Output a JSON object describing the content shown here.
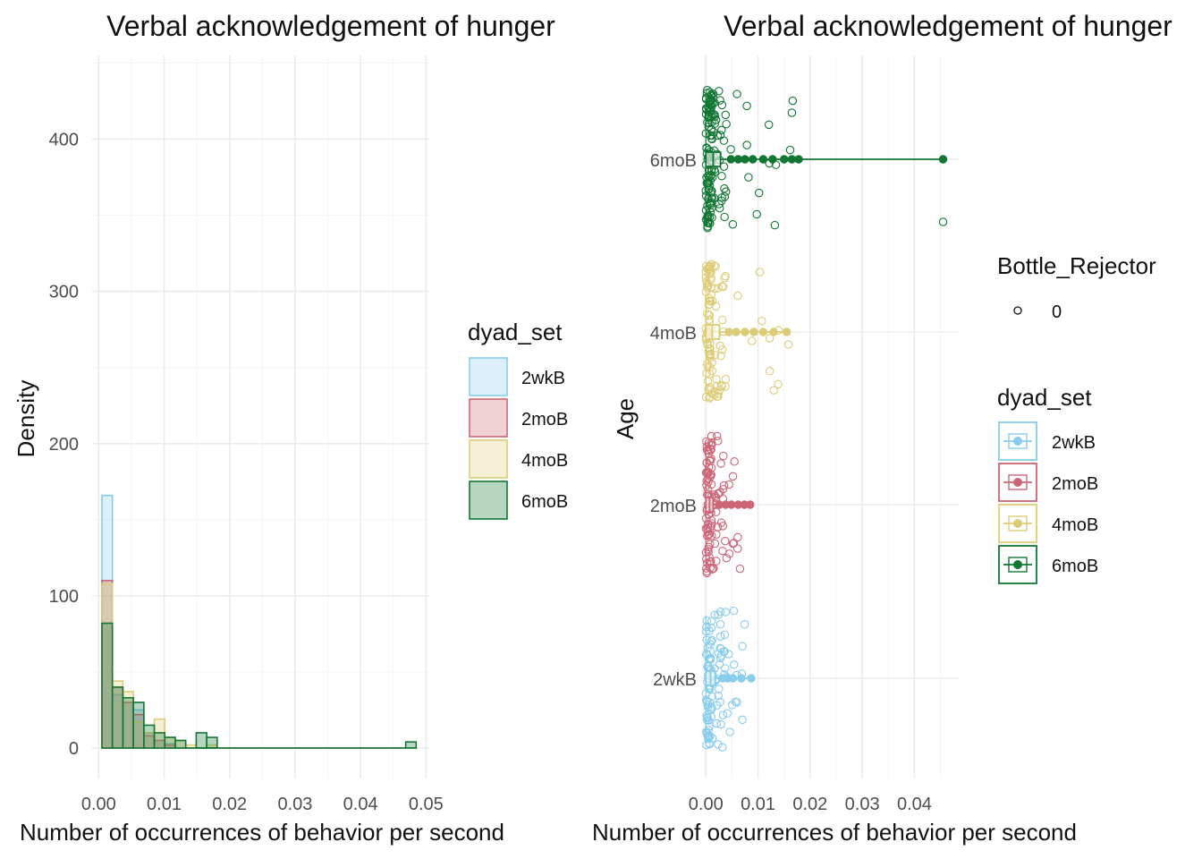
{
  "chart_data": [
    {
      "type": "histogram",
      "title": "Verbal acknowledgement of hunger",
      "xlabel": "Number of occurrences of behavior per second",
      "ylabel": "Density",
      "xlim": [
        -0.001,
        0.0505
      ],
      "ylim": [
        -20,
        455
      ],
      "x_ticks": [
        "0.00",
        "0.01",
        "0.02",
        "0.03",
        "0.04",
        "0.05"
      ],
      "x_tick_values": [
        0,
        0.01,
        0.02,
        0.03,
        0.04,
        0.05
      ],
      "y_ticks": [
        "0",
        "100",
        "200",
        "300",
        "400"
      ],
      "y_tick_values": [
        0,
        100,
        200,
        300,
        400
      ],
      "bin_width": 0.0016,
      "bin_starts": [
        0.0005,
        0.0021,
        0.0037,
        0.0053,
        0.0069,
        0.0085,
        0.0101,
        0.0117,
        0.0133,
        0.0149,
        0.0165,
        0.0181,
        0.0197,
        0.0213,
        0.0229,
        0.0245,
        0.0261,
        0.0277,
        0.0293,
        0.0309,
        0.0325,
        0.0341,
        0.0357,
        0.0373,
        0.0389,
        0.0405,
        0.0421,
        0.0437,
        0.0453,
        0.0469
      ],
      "legend_title": "dyad_set",
      "legend_position": "right",
      "grid": true,
      "series": [
        {
          "name": "2wkB",
          "color": "#88CCEE",
          "values": [
            166,
            35,
            30,
            25,
            10,
            5,
            3,
            0,
            0,
            0,
            0,
            0,
            0,
            0,
            0,
            0,
            0,
            0,
            0,
            0,
            0,
            0,
            0,
            0,
            0,
            0,
            0,
            0,
            0,
            0
          ]
        },
        {
          "name": "2moB",
          "color": "#CC6677",
          "values": [
            110,
            40,
            30,
            22,
            8,
            5,
            2,
            0,
            0,
            0,
            0,
            0,
            0,
            0,
            0,
            0,
            0,
            0,
            0,
            0,
            0,
            0,
            0,
            0,
            0,
            0,
            0,
            0,
            0,
            0
          ]
        },
        {
          "name": "4moB",
          "color": "#DDCC77",
          "values": [
            108,
            44,
            37,
            17,
            10,
            19,
            7,
            5,
            2,
            0,
            2,
            0,
            0,
            0,
            0,
            0,
            0,
            0,
            0,
            0,
            0,
            0,
            0,
            0,
            0,
            0,
            0,
            0,
            0,
            0
          ]
        },
        {
          "name": "6moB",
          "color": "#117733",
          "values": [
            82,
            40,
            33,
            30,
            15,
            10,
            7,
            5,
            0,
            10,
            7,
            0,
            0,
            0,
            0,
            0,
            0,
            0,
            0,
            0,
            0,
            0,
            0,
            0,
            0,
            0,
            0,
            0,
            0,
            4
          ]
        }
      ]
    },
    {
      "type": "boxplot",
      "title": "Verbal acknowledgement of hunger",
      "xlabel": "Number of occurrences of behavior per second",
      "ylabel": "Age",
      "xlim": [
        -0.0009,
        0.0485
      ],
      "x_ticks": [
        "0.00",
        "0.01",
        "0.02",
        "0.03",
        "0.04"
      ],
      "x_tick_values": [
        0,
        0.01,
        0.02,
        0.03,
        0.04
      ],
      "categories": [
        "2wkB",
        "2moB",
        "4moB",
        "6moB"
      ],
      "grid": true,
      "legend_position": "right",
      "legend_title": "dyad_set",
      "point_legend_title": "Bottle_Rejector",
      "point_legend_labels": [
        "0"
      ],
      "series": [
        {
          "name": "2wkB",
          "color": "#88CCEE",
          "median": 0.0009,
          "q1": 0.0,
          "q3": 0.0018,
          "outliers": [
            0.0032,
            0.0042,
            0.0052,
            0.0068,
            0.0087
          ],
          "jitter_max": 0.0088
        },
        {
          "name": "2moB",
          "color": "#CC6677",
          "median": 0.0007,
          "q1": 0.0,
          "q3": 0.0014,
          "outliers": [
            0.0026,
            0.0038,
            0.0049,
            0.0062,
            0.0074,
            0.0085
          ],
          "jitter_max": 0.0068
        },
        {
          "name": "4moB",
          "color": "#DDCC77",
          "median": 0.0012,
          "q1": 0.0,
          "q3": 0.0026,
          "outliers": [
            0.0044,
            0.0058,
            0.0075,
            0.0092,
            0.011,
            0.013,
            0.0155
          ],
          "jitter_max": 0.0165
        },
        {
          "name": "6moB",
          "color": "#117733",
          "median": 0.0014,
          "q1": 0.0,
          "q3": 0.0028,
          "outliers": [
            0.0048,
            0.0062,
            0.0075,
            0.009,
            0.011,
            0.0128,
            0.015,
            0.0165,
            0.0178,
            0.0455
          ],
          "jitter_max": 0.0455
        }
      ]
    }
  ]
}
